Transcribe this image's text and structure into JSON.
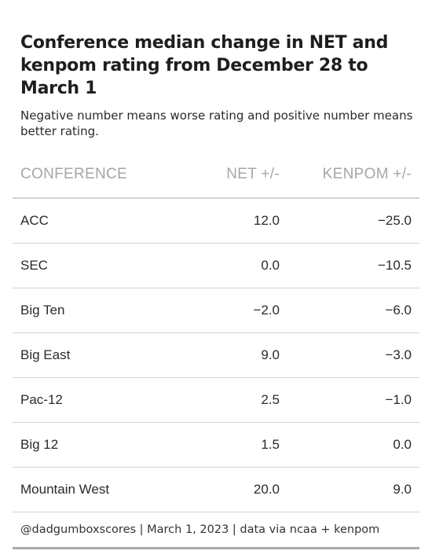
{
  "chart_data": {
    "type": "table",
    "title": "Conference median change in NET and kenpom rating from December 28 to March 1",
    "subtitle": "Negative number means worse rating and positive number means better rating.",
    "columns": [
      "CONFERENCE",
      "NET +/-",
      "KENPOM +/-"
    ],
    "rows": [
      {
        "conference": "ACC",
        "net": "12.0",
        "kenpom": "−25.0"
      },
      {
        "conference": "SEC",
        "net": "0.0",
        "kenpom": "−10.5"
      },
      {
        "conference": "Big Ten",
        "net": "−2.0",
        "kenpom": "−6.0"
      },
      {
        "conference": "Big East",
        "net": "9.0",
        "kenpom": "−3.0"
      },
      {
        "conference": "Pac-12",
        "net": "2.5",
        "kenpom": "−1.0"
      },
      {
        "conference": "Big 12",
        "net": "1.5",
        "kenpom": "0.0"
      },
      {
        "conference": "Mountain West",
        "net": "20.0",
        "kenpom": "9.0"
      }
    ],
    "footer": "@dadgumboxscores | March 1, 2023 | data via ncaa + kenpom"
  }
}
